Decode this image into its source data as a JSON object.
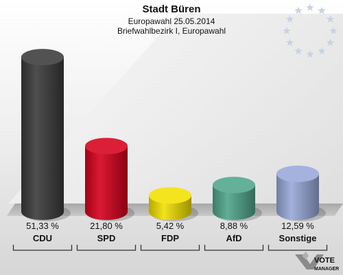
{
  "chart_data": {
    "type": "bar",
    "title": "Stadt Büren",
    "subtitle": "Europawahl 25.05.2014",
    "subtitle2": "Briefwahlbezirk I, Europawahl",
    "categories": [
      "CDU",
      "SPD",
      "FDP",
      "AfD",
      "Sonstige"
    ],
    "values": [
      51.33,
      21.8,
      5.42,
      8.88,
      12.59
    ],
    "value_labels": [
      "51,33 %",
      "21,80 %",
      "5,42 %",
      "8,88 %",
      "12,59 %"
    ],
    "colors": [
      "#3a3a3a",
      "#d6001c",
      "#f2e000",
      "#4fa58a",
      "#98a8d8"
    ],
    "ylim": [
      0,
      55
    ]
  },
  "branding": {
    "logo_text": "VOTE MANAGER",
    "logo_icon": "vote-manager-logo-icon"
  },
  "decoration": {
    "eu_stars_icon": "eu-stars-icon"
  }
}
